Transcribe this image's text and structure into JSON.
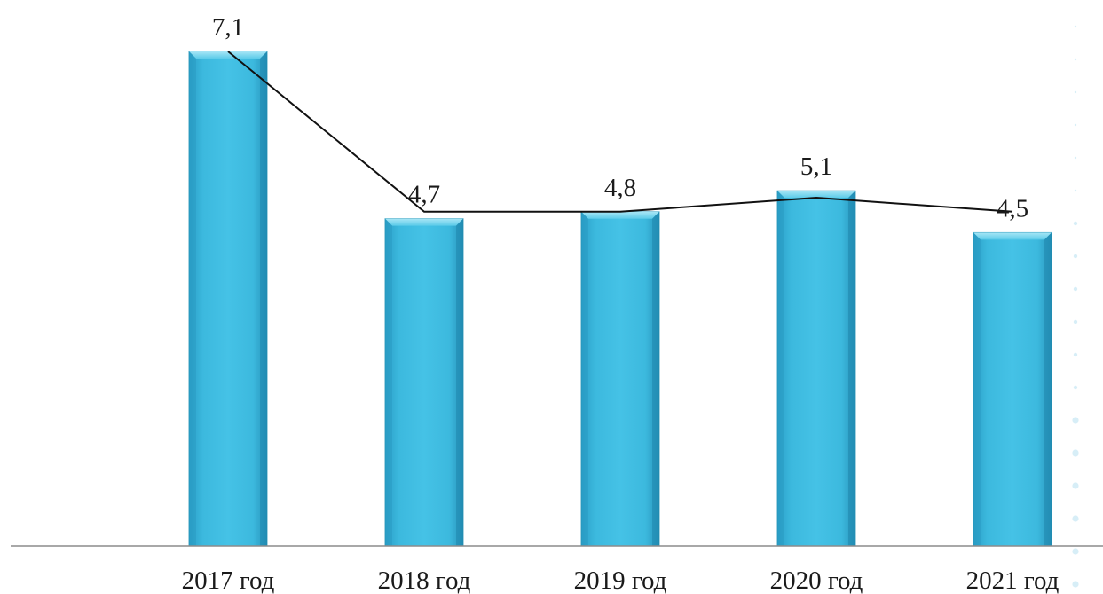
{
  "chart_data": {
    "type": "bar",
    "categories": [
      "2017 год",
      "2018 год",
      "2019 год",
      "2020 год",
      "2021 год"
    ],
    "series": [
      {
        "values": [
          7.1,
          4.7,
          4.8,
          5.1,
          4.5
        ],
        "display_labels": [
          "7,1",
          "4,7",
          "4,8",
          "5,1",
          "4,5"
        ],
        "kind": "bar"
      },
      {
        "values": [
          7.1,
          4.8,
          4.8,
          5.0,
          4.8
        ],
        "kind": "line"
      }
    ],
    "title": "",
    "xlabel": "",
    "ylabel": "",
    "ylim": [
      0,
      7.1
    ],
    "grid": false,
    "legend": "none",
    "colors": {
      "bar_fill": "#3bb8dc",
      "bar_top": "#7fd8ef",
      "bar_edge": "#1f8fb3",
      "line": "#111111",
      "axis": "#888888",
      "dots": "#d7eef7"
    }
  }
}
